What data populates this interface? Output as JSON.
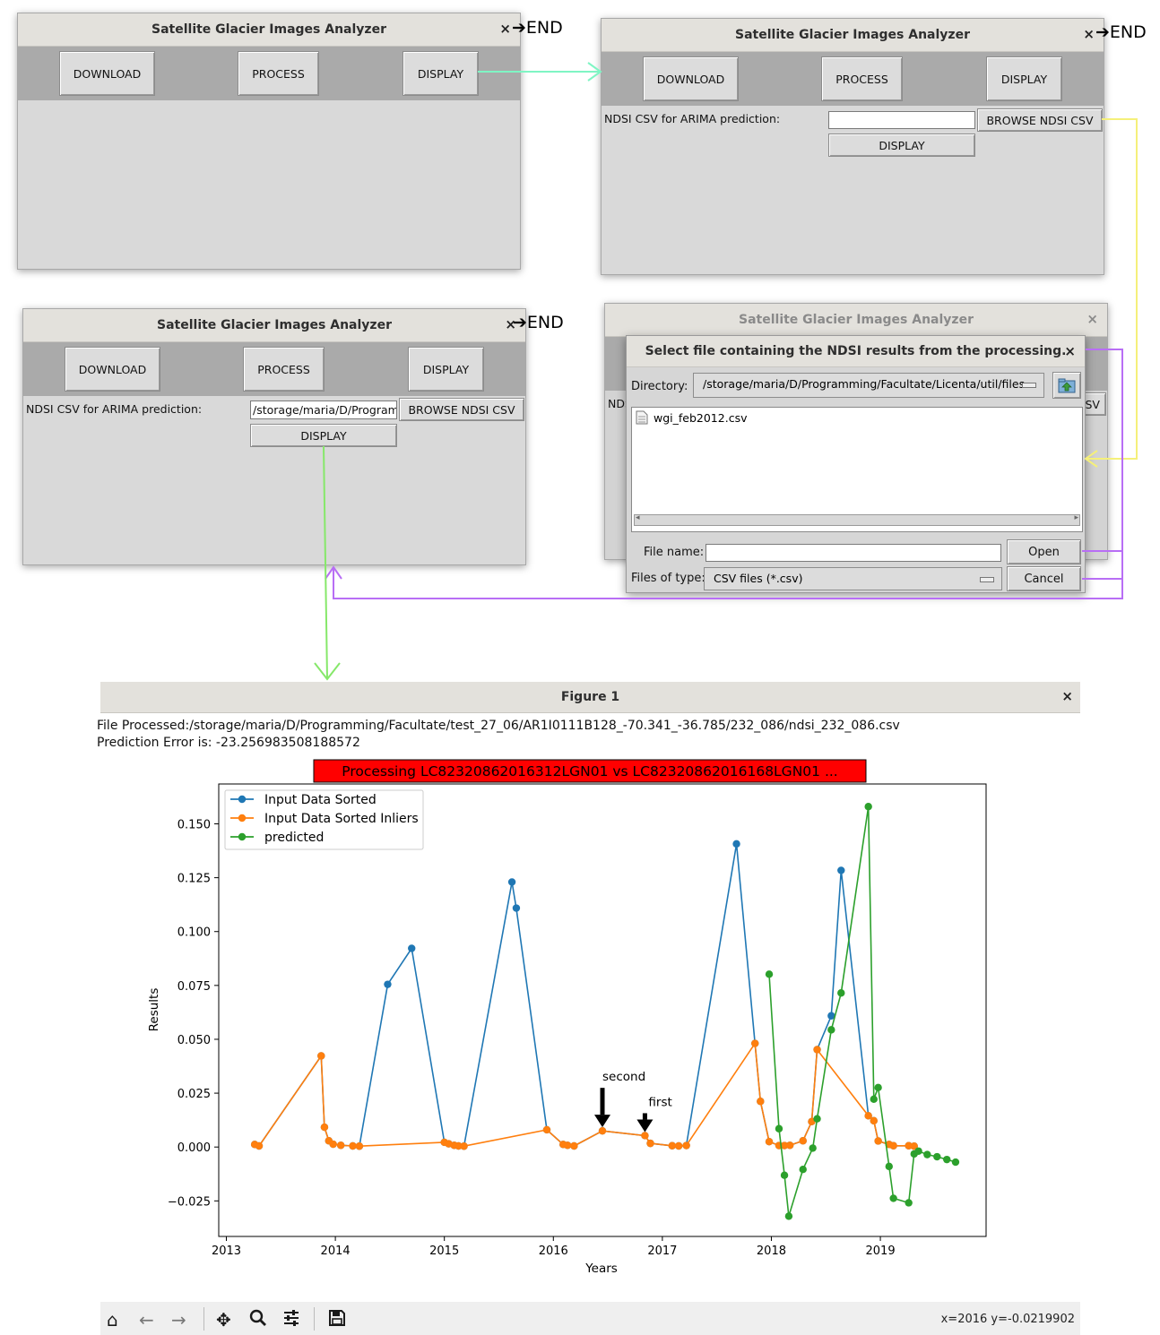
{
  "app_title": "Satellite Glacier Images Analyzer",
  "end_label": "END",
  "close_glyph": "×",
  "arrow_glyph": "➔",
  "buttons": {
    "download": "DOWNLOAD",
    "process": "PROCESS",
    "display": "DISPLAY",
    "browse": "BROWSE NDSI CSV"
  },
  "ndsi_label": "NDSI CSV for ARIMA prediction:",
  "ndsi_value_window3": "/storage/maria/D/Programming/Facultate",
  "file_dialog": {
    "title": "Select file containing the NDSI results from the  processing.",
    "directory_label": "Directory:",
    "directory_value": "/storage/maria/D/Programming/Facultate/Licenta/util/files",
    "file_item": "wgi_feb2012.csv",
    "file_name_label": "File name:",
    "file_name_value": "",
    "files_of_type_label": "Files of type:",
    "files_of_type_value": "CSV files (*.csv)",
    "open": "Open",
    "cancel": "Cancel",
    "partial_left": "NDS",
    "partial_right": "SV"
  },
  "figure": {
    "window_title": "Figure 1",
    "file_processed": "File Processed:/storage/maria/D/Programming/Facultate/test_27_06/AR1I0111B128_-70.341_-36.785/232_086/ndsi_232_086.csv",
    "prediction_error": "Prediction Error is: -23.256983508188572",
    "coords": "x=2016 y=-0.0219902"
  },
  "colors": {
    "blue": "#1f77b4",
    "orange": "#ff7f0e",
    "green": "#2ca02c",
    "cyan_arrow": "#7ff5c4",
    "yellow_arrow": "#f5f07a",
    "purple_arrow": "#b86ef5",
    "green_arrow": "#86e86a",
    "title_box": "#ff0000"
  },
  "chart_data": {
    "type": "line",
    "title": "Processing LC82320862016312LGN01 vs LC82320862016168LGN01 ...",
    "xlabel": "Years",
    "ylabel": "Results",
    "xlim": [
      2012.93,
      2019.97
    ],
    "ylim": [
      -0.0415,
      0.1685
    ],
    "xticks": [
      "2013",
      "2014",
      "2015",
      "2016",
      "2017",
      "2018",
      "2019"
    ],
    "yticks": [
      "−0.025",
      "0.000",
      "0.025",
      "0.050",
      "0.075",
      "0.100",
      "0.125",
      "0.150"
    ],
    "ytick_values": [
      -0.025,
      0.0,
      0.025,
      0.05,
      0.075,
      0.1,
      0.125,
      0.15
    ],
    "legend_position": "upper left",
    "series": [
      {
        "name": "Input Data Sorted",
        "color": "#1f77b4",
        "points": [
          [
            2013.26,
            0.0012
          ],
          [
            2013.3,
            0.0005
          ],
          [
            2013.87,
            0.0423
          ],
          [
            2013.9,
            0.0092
          ],
          [
            2013.94,
            0.0029
          ],
          [
            2013.98,
            0.0013
          ],
          [
            2014.05,
            0.0008
          ],
          [
            2014.16,
            0.0005
          ],
          [
            2014.22,
            0.0004
          ],
          [
            2014.48,
            0.0755
          ],
          [
            2014.7,
            0.0922
          ],
          [
            2015.0,
            0.0022
          ],
          [
            2015.04,
            0.0015
          ],
          [
            2015.09,
            0.0008
          ],
          [
            2015.13,
            0.0005
          ],
          [
            2015.18,
            0.0004
          ],
          [
            2015.62,
            0.123
          ],
          [
            2015.66,
            0.1109
          ],
          [
            2015.94,
            0.008
          ],
          [
            2016.09,
            0.0012
          ],
          [
            2016.13,
            0.0008
          ],
          [
            2016.19,
            0.0005
          ],
          [
            2016.45,
            0.0075
          ],
          [
            2016.84,
            0.0053
          ],
          [
            2016.89,
            0.0017
          ],
          [
            2017.09,
            0.0006
          ],
          [
            2017.15,
            0.0005
          ],
          [
            2017.22,
            0.0007
          ],
          [
            2017.68,
            0.1407
          ],
          [
            2017.85,
            0.0481
          ],
          [
            2017.9,
            0.0212
          ],
          [
            2017.98,
            0.0025
          ],
          [
            2018.07,
            0.0007
          ],
          [
            2018.12,
            0.0007
          ],
          [
            2018.17,
            0.0008
          ],
          [
            2018.29,
            0.0029
          ],
          [
            2018.37,
            0.0118
          ],
          [
            2018.42,
            0.0452
          ],
          [
            2018.55,
            0.0609
          ],
          [
            2018.64,
            0.1284
          ],
          [
            2018.89,
            0.0145
          ],
          [
            2018.94,
            0.0122
          ],
          [
            2018.98,
            0.0028
          ],
          [
            2019.08,
            0.0012
          ],
          [
            2019.12,
            0.0006
          ],
          [
            2019.26,
            0.0006
          ],
          [
            2019.31,
            0.0004
          ]
        ]
      },
      {
        "name": "Input Data Sorted Inliers",
        "color": "#ff7f0e",
        "points": [
          [
            2013.26,
            0.0012
          ],
          [
            2013.3,
            0.0005
          ],
          [
            2013.87,
            0.0423
          ],
          [
            2013.9,
            0.0092
          ],
          [
            2013.94,
            0.0029
          ],
          [
            2013.98,
            0.0013
          ],
          [
            2014.05,
            0.0008
          ],
          [
            2014.16,
            0.0005
          ],
          [
            2014.22,
            0.0004
          ],
          [
            2015.0,
            0.0022
          ],
          [
            2015.04,
            0.0015
          ],
          [
            2015.09,
            0.0008
          ],
          [
            2015.13,
            0.0005
          ],
          [
            2015.18,
            0.0004
          ],
          [
            2015.94,
            0.008
          ],
          [
            2016.09,
            0.0012
          ],
          [
            2016.13,
            0.0008
          ],
          [
            2016.19,
            0.0005
          ],
          [
            2016.45,
            0.0075
          ],
          [
            2016.84,
            0.0053
          ],
          [
            2016.89,
            0.0017
          ],
          [
            2017.09,
            0.0006
          ],
          [
            2017.15,
            0.0005
          ],
          [
            2017.22,
            0.0007
          ],
          [
            2017.85,
            0.0481
          ],
          [
            2017.9,
            0.0212
          ],
          [
            2017.98,
            0.0025
          ],
          [
            2018.07,
            0.0007
          ],
          [
            2018.12,
            0.0007
          ],
          [
            2018.17,
            0.0008
          ],
          [
            2018.29,
            0.0029
          ],
          [
            2018.37,
            0.0118
          ],
          [
            2018.42,
            0.0452
          ],
          [
            2018.89,
            0.0145
          ],
          [
            2018.94,
            0.0122
          ],
          [
            2018.98,
            0.0028
          ],
          [
            2019.08,
            0.0012
          ],
          [
            2019.12,
            0.0006
          ],
          [
            2019.26,
            0.0006
          ],
          [
            2019.31,
            0.0004
          ]
        ]
      },
      {
        "name": "predicted",
        "color": "#2ca02c",
        "points": [
          [
            2017.98,
            0.0802
          ],
          [
            2018.07,
            0.0085
          ],
          [
            2018.12,
            -0.0131
          ],
          [
            2018.16,
            -0.0321
          ],
          [
            2018.29,
            -0.0104
          ],
          [
            2018.38,
            -0.0005
          ],
          [
            2018.42,
            0.0131
          ],
          [
            2018.55,
            0.0544
          ],
          [
            2018.64,
            0.0715
          ],
          [
            2018.89,
            0.158
          ],
          [
            2018.94,
            0.0222
          ],
          [
            2018.98,
            0.0276
          ],
          [
            2019.08,
            -0.009
          ],
          [
            2019.12,
            -0.0238
          ],
          [
            2019.26,
            -0.0259
          ],
          [
            2019.31,
            -0.0032
          ],
          [
            2019.35,
            -0.0019
          ],
          [
            2019.43,
            -0.0035
          ],
          [
            2019.52,
            -0.0045
          ],
          [
            2019.61,
            -0.0058
          ],
          [
            2019.69,
            -0.007
          ]
        ]
      }
    ],
    "annotations": [
      {
        "text": "second",
        "x": 2016.45,
        "y": 0.0075
      },
      {
        "text": "first",
        "x": 2016.84,
        "y": 0.0053
      }
    ]
  }
}
